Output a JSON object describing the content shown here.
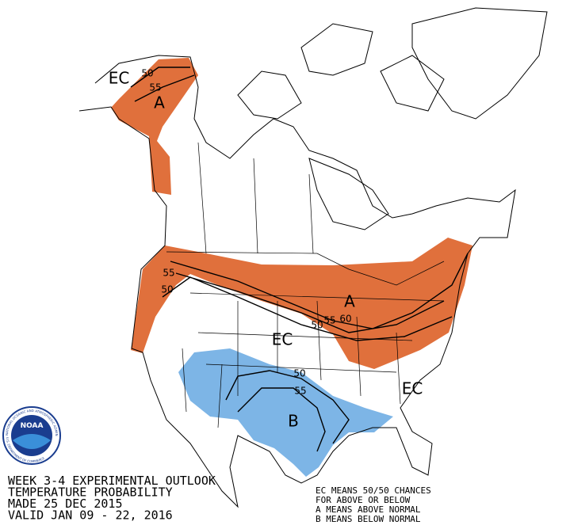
{
  "header": {
    "lines": [
      "WEEK 3-4 EXPERIMENTAL OUTLOOK",
      "TEMPERATURE PROBABILITY",
      "MADE  25 DEC 2015",
      "VALID  JAN 09 - 22, 2016"
    ]
  },
  "legend": {
    "lines": [
      "EC MEANS 50/50 CHANCES",
      "FOR ABOVE OR BELOW",
      "A MEANS ABOVE NORMAL",
      "B MEANS BELOW NORMAL"
    ]
  },
  "logo": {
    "text": "NOAA",
    "ring_top": "NATIONAL OCEANIC AND ATMOSPHERIC ADMINISTRATION",
    "ring_bottom": "U.S. DEPARTMENT OF COMMERCE"
  },
  "map": {
    "labels": [
      {
        "text": "EC"
      },
      {
        "text": "50"
      },
      {
        "text": "55"
      },
      {
        "text": "A"
      },
      {
        "text": "55"
      },
      {
        "text": "50"
      },
      {
        "text": "A"
      },
      {
        "text": "50"
      },
      {
        "text": "55"
      },
      {
        "text": "60"
      },
      {
        "text": "EC"
      },
      {
        "text": "50"
      },
      {
        "text": "55"
      },
      {
        "text": "B"
      },
      {
        "text": "EC"
      }
    ]
  }
}
